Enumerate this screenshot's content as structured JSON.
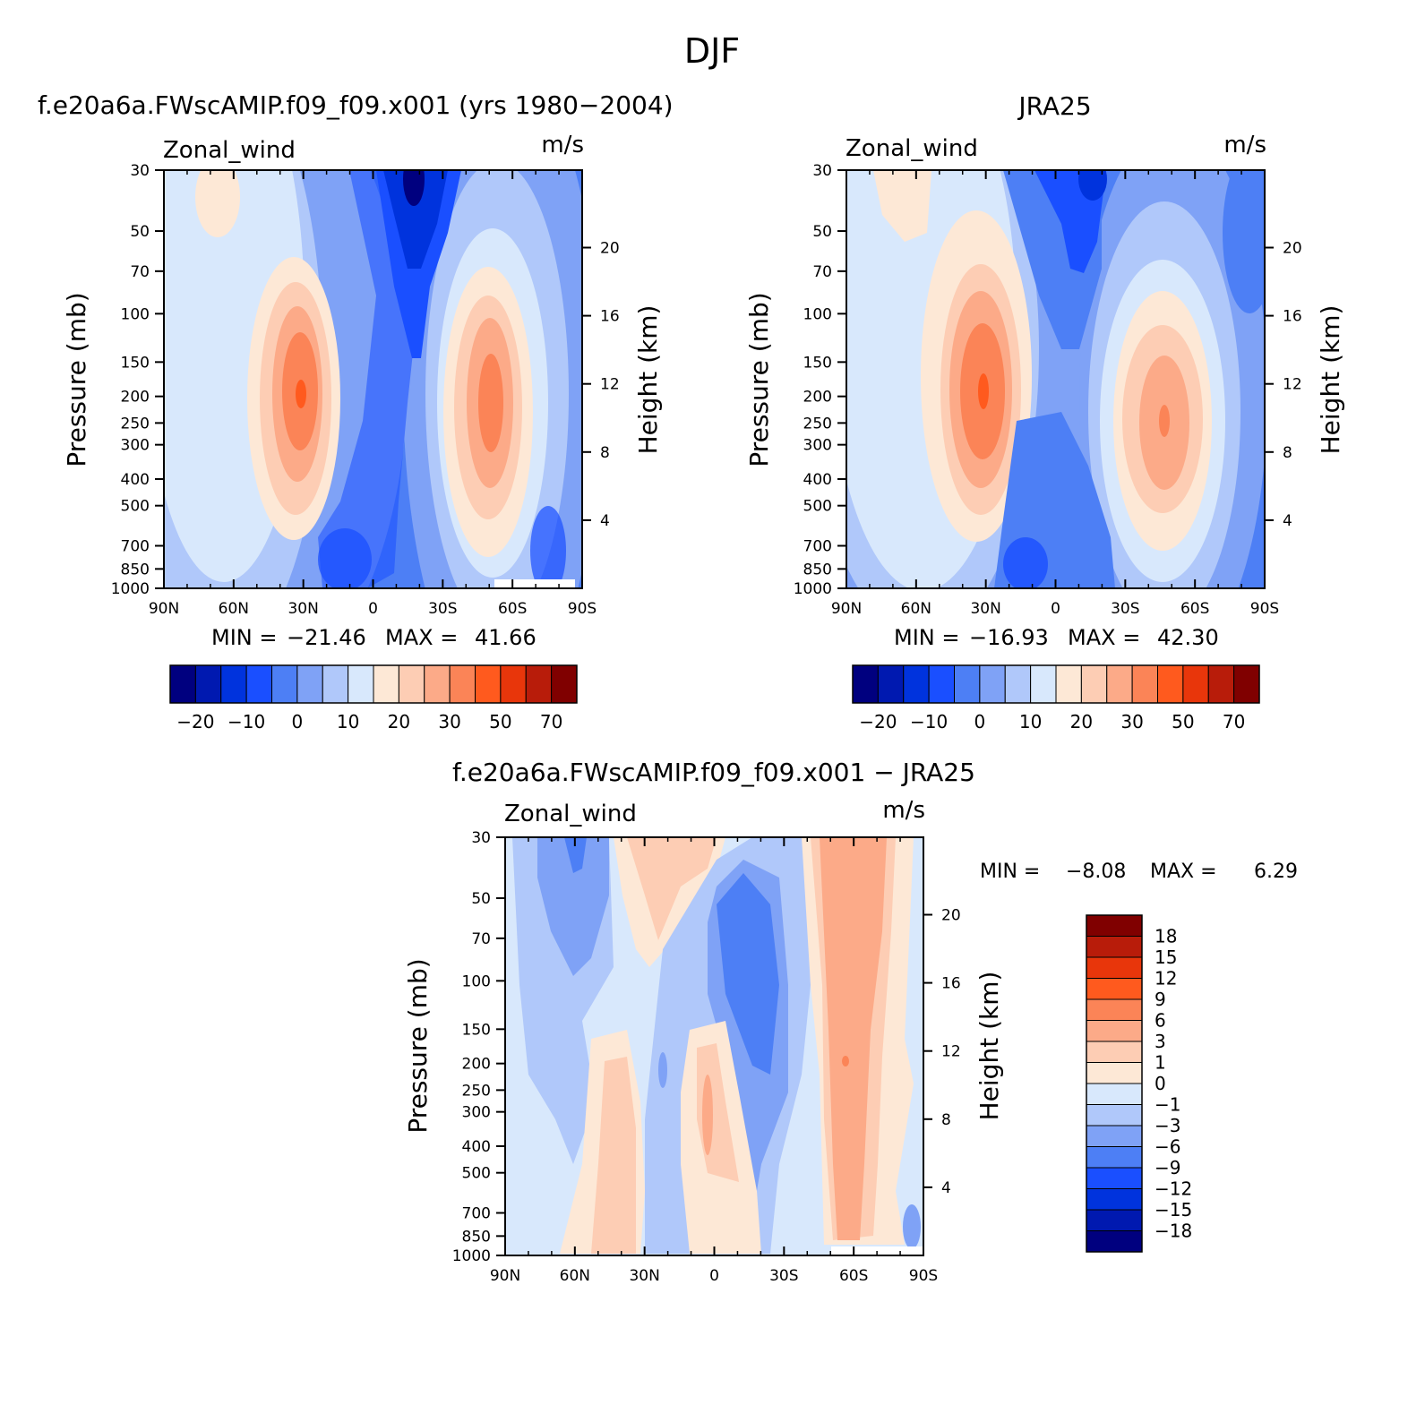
{
  "page_title": "DJF",
  "colors": {
    "wind_scale": [
      "#00007f",
      "#0019b0",
      "#0033dd",
      "#1a4fff",
      "#4d7ff5",
      "#7fa2f6",
      "#b0c8fa",
      "#d8e8fc",
      "#fde8d6",
      "#fdcdb4",
      "#fcaa88",
      "#fb8457",
      "#ff5a1e",
      "#e8360b",
      "#b81c0a",
      "#800000"
    ],
    "diff_scale": [
      "#00007f",
      "#0019b0",
      "#0033dd",
      "#1a4fff",
      "#4d7ff5",
      "#7fa2f6",
      "#b0c8fa",
      "#d8e8fc",
      "#fde8d6",
      "#fdcdb4",
      "#fcaa88",
      "#fb8457",
      "#ff5a1e",
      "#e8360b",
      "#b81c0a",
      "#800000"
    ]
  },
  "chart_data": [
    {
      "type": "heatmap",
      "title": "f.e20a6a.FWscAMIP.f09_f09.x001 (yrs 1980−2004)",
      "variable": "Zonal_wind",
      "units": "m/s",
      "ylabel": "Pressure (mb)",
      "ylabel_right": "Height (km)",
      "x_ticks": [
        "90N",
        "60N",
        "30N",
        "0",
        "30S",
        "60S",
        "90S"
      ],
      "y_ticks": [
        "30",
        "50",
        "70",
        "100",
        "150",
        "200",
        "250",
        "300",
        "400",
        "500",
        "700",
        "850",
        "1000"
      ],
      "y_ticks_right": [
        "20",
        "16",
        "12",
        "8",
        "4"
      ],
      "stats": {
        "min_label": "MIN =",
        "min": "−21.46",
        "max_label": "MAX =",
        "max": "41.66"
      },
      "colorbar_labels": [
        "−20",
        "−10",
        "0",
        "10",
        "20",
        "30",
        "50",
        "70"
      ],
      "jets": [
        {
          "lat": 30,
          "pressure": 200,
          "max": 41.66
        },
        {
          "lat": -48,
          "pressure": 220,
          "max": 38
        }
      ],
      "minimum": {
        "lat": -15,
        "pressure": 35,
        "value": -21.46
      }
    },
    {
      "type": "heatmap",
      "title": "JRA25",
      "variable": "Zonal_wind",
      "units": "m/s",
      "ylabel": "Pressure (mb)",
      "ylabel_right": "Height (km)",
      "x_ticks": [
        "90N",
        "60N",
        "30N",
        "0",
        "30S",
        "60S",
        "90S"
      ],
      "y_ticks": [
        "30",
        "50",
        "70",
        "100",
        "150",
        "200",
        "250",
        "300",
        "400",
        "500",
        "700",
        "850",
        "1000"
      ],
      "y_ticks_right": [
        "20",
        "16",
        "12",
        "8",
        "4"
      ],
      "stats": {
        "min_label": "MIN =",
        "min": "−16.93",
        "max_label": "MAX =",
        "max": "42.30"
      },
      "colorbar_labels": [
        "−20",
        "−10",
        "0",
        "10",
        "20",
        "30",
        "50",
        "70"
      ],
      "jets": [
        {
          "lat": 30,
          "pressure": 200,
          "max": 42.3
        },
        {
          "lat": -47,
          "pressure": 230,
          "max": 36
        }
      ],
      "minimum": {
        "lat": -15,
        "pressure": 35,
        "value": -16.93
      }
    },
    {
      "type": "heatmap",
      "title": "f.e20a6a.FWscAMIP.f09_f09.x001 − JRA25",
      "variable": "Zonal_wind",
      "units": "m/s",
      "ylabel": "Pressure (mb)",
      "ylabel_right": "Height (km)",
      "x_ticks": [
        "90N",
        "60N",
        "30N",
        "0",
        "30S",
        "60S",
        "90S"
      ],
      "y_ticks": [
        "30",
        "50",
        "70",
        "100",
        "150",
        "200",
        "250",
        "300",
        "400",
        "500",
        "700",
        "850",
        "1000"
      ],
      "y_ticks_right": [
        "20",
        "16",
        "12",
        "8",
        "4"
      ],
      "stats": {
        "min_label": "MIN =",
        "min": "−8.08",
        "max_label": "MAX =",
        "max": "6.29"
      },
      "colorbar_labels": [
        "18",
        "15",
        "12",
        "9",
        "6",
        "3",
        "1",
        "0",
        "−1",
        "−3",
        "−6",
        "−9",
        "−12",
        "−15",
        "−18"
      ]
    }
  ]
}
